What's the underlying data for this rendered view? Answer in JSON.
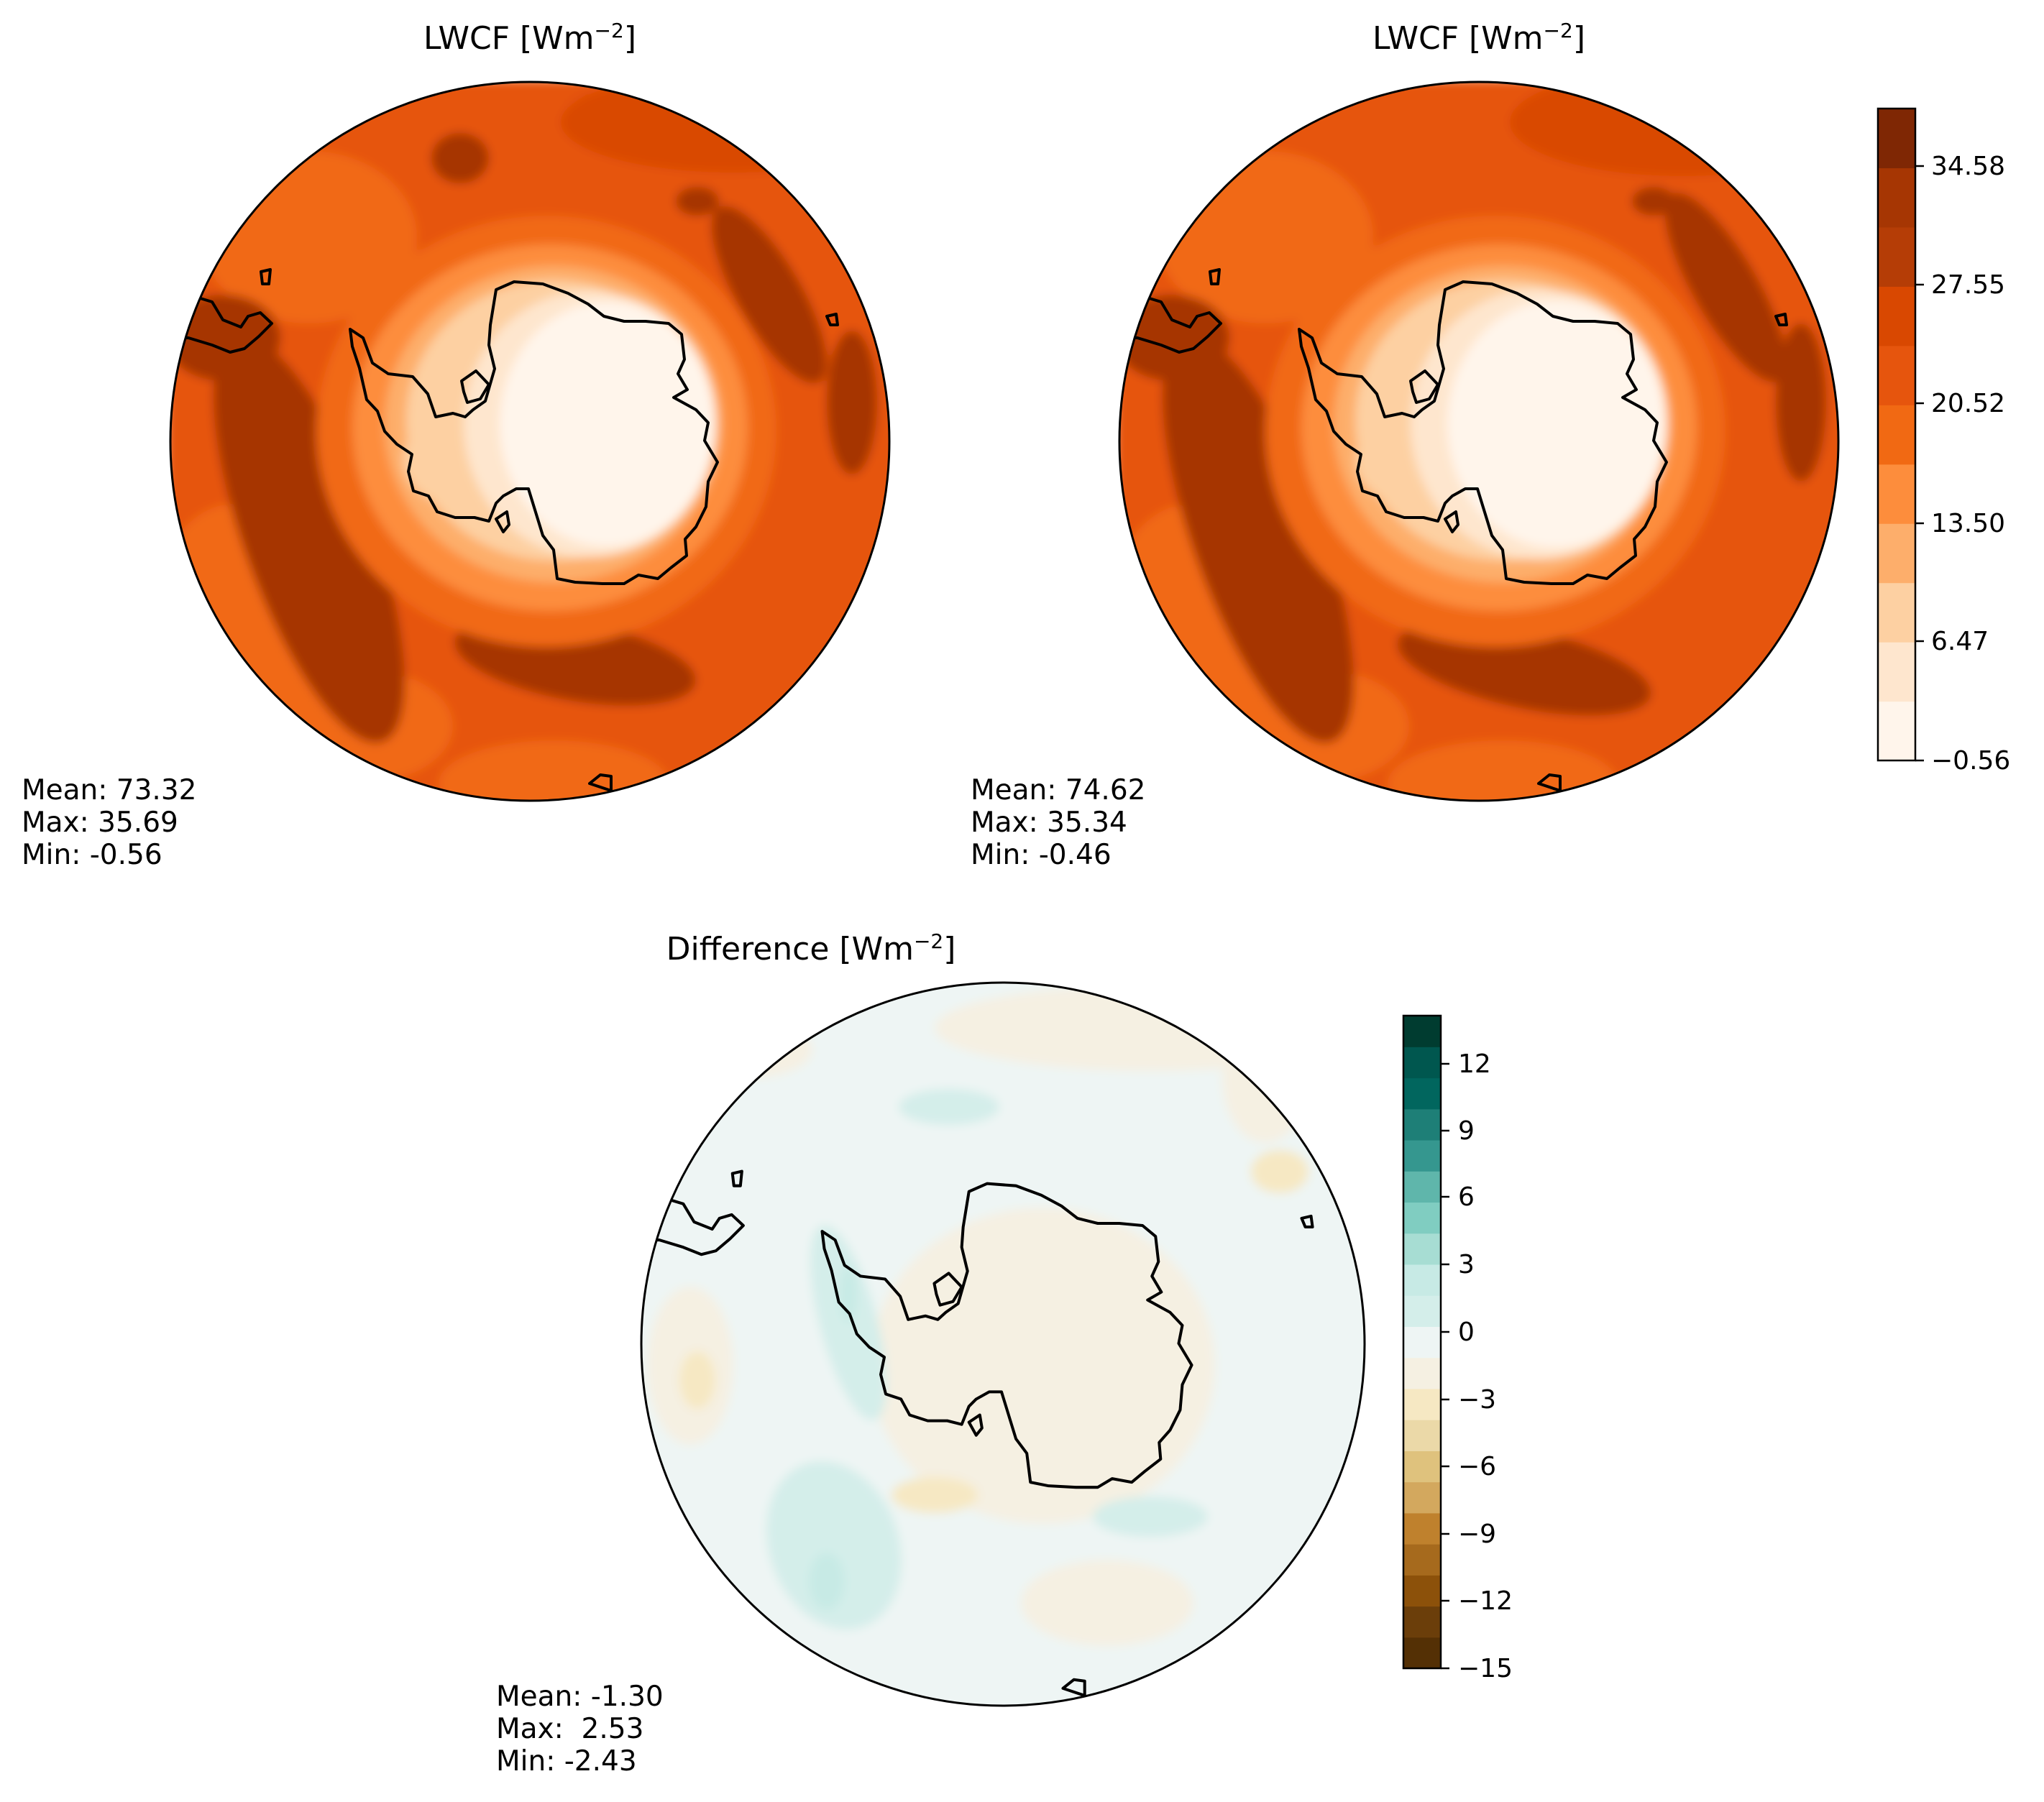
{
  "figure": {
    "panels": [
      {
        "id": "test",
        "title": "LWCF [Wm",
        "title_sup": "−2",
        "title_end": "]",
        "stats": {
          "mean": "Mean: 73.32",
          "max": "Max: 35.69",
          "min": "Min: -0.56"
        }
      },
      {
        "id": "reference",
        "title": "LWCF [Wm",
        "title_sup": "−2",
        "title_end": "]",
        "stats": {
          "mean": "Mean: 74.62",
          "max": "Max: 35.34",
          "min": "Min: -0.46"
        }
      },
      {
        "id": "difference",
        "title": "Difference [Wm",
        "title_sup": "−2",
        "title_end": "]",
        "stats": {
          "mean": "Mean: -1.30",
          "max": "Max:  2.53",
          "min": "Min: -2.43"
        }
      }
    ],
    "colorbars": {
      "lwcf": {
        "ticks": [
          "34.58",
          "27.55",
          "20.52",
          "13.50",
          "6.47",
          "−0.56"
        ],
        "colors": [
          "#fff5eb",
          "#fee6ce",
          "#fdd0a2",
          "#fdae6b",
          "#fd8d3c",
          "#f16913",
          "#e6550d",
          "#d94801",
          "#b53d06",
          "#a63603",
          "#7f2704"
        ]
      },
      "difference": {
        "ticks": [
          "12",
          "9",
          "6",
          "3",
          "0",
          "−3",
          "−6",
          "−9",
          "−12",
          "−15"
        ],
        "colors": [
          "#543005",
          "#6b3e0a",
          "#8c510a",
          "#a66a1d",
          "#bf812d",
          "#d3a85e",
          "#dfc27d",
          "#ebd9a8",
          "#f6e8c3",
          "#f5f0e2",
          "#eef5f4",
          "#d4eeea",
          "#c7eae5",
          "#a7ddd3",
          "#80cdc1",
          "#5fb6ab",
          "#35978f",
          "#1e7f77",
          "#01665e",
          "#00574f",
          "#003c30"
        ]
      }
    },
    "chart_data": [
      {
        "type": "heatmap",
        "projection": "south-polar stereographic",
        "title": "LWCF [Wm−2]",
        "variable": "LWCF",
        "units": "Wm−2",
        "colormap": "Oranges",
        "levels": [
          -0.56,
          2.96,
          6.47,
          9.99,
          13.5,
          17.01,
          20.52,
          24.04,
          27.55,
          31.07,
          34.58,
          38.09
        ],
        "colorbar_ticks": [
          -0.56,
          6.47,
          13.5,
          20.52,
          27.55,
          34.58
        ],
        "mean": 73.32,
        "max": 35.69,
        "min": -0.56
      },
      {
        "type": "heatmap",
        "projection": "south-polar stereographic",
        "title": "LWCF [Wm−2]",
        "variable": "LWCF",
        "units": "Wm−2",
        "colormap": "Oranges",
        "levels": [
          -0.56,
          2.96,
          6.47,
          9.99,
          13.5,
          17.01,
          20.52,
          24.04,
          27.55,
          31.07,
          34.58,
          38.09
        ],
        "colorbar_ticks": [
          -0.56,
          6.47,
          13.5,
          20.52,
          27.55,
          34.58
        ],
        "mean": 74.62,
        "max": 35.34,
        "min": -0.46
      },
      {
        "type": "heatmap",
        "projection": "south-polar stereographic",
        "title": "Difference [Wm−2]",
        "units": "Wm−2",
        "colormap": "BrBG",
        "range": [
          -15,
          13.5
        ],
        "colorbar_ticks": [
          -15,
          -12,
          -9,
          -6,
          -3,
          0,
          3,
          6,
          9,
          12
        ],
        "mean": -1.3,
        "max": 2.53,
        "min": -2.43
      }
    ]
  }
}
